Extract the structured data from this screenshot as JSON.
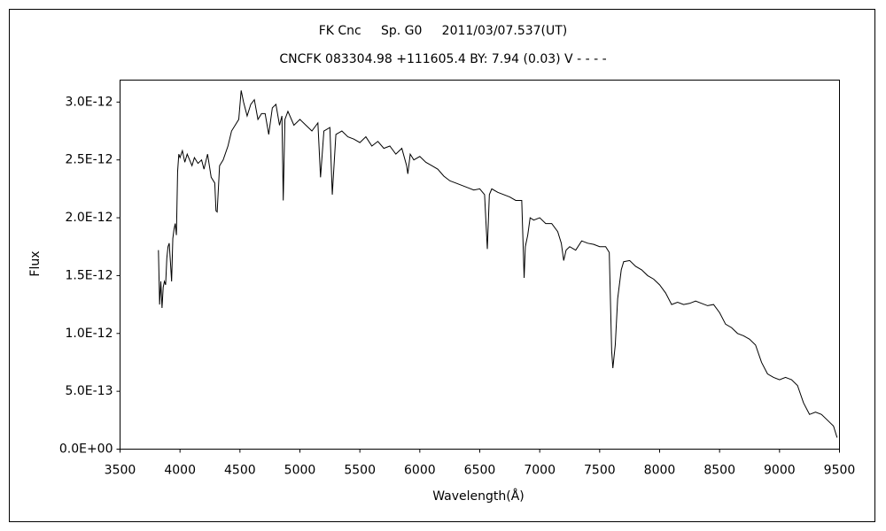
{
  "chart_data": {
    "type": "line",
    "title": "FK Cnc     Sp. G0     2011/03/07.537(UT)",
    "subtitle": "CNCFK 083304.98 +111605.4 BY: 7.94 (0.03) V - - - -",
    "x_label": "Wavelength(Å)",
    "y_label": "Flux",
    "color": "#000000",
    "xlim": [
      3500,
      9500
    ],
    "xticks": [
      3500,
      4000,
      4500,
      5000,
      5500,
      6000,
      6500,
      7000,
      7500,
      8000,
      8500,
      9000,
      9500
    ],
    "ylim": [
      0,
      3.19e-12
    ],
    "yticks": [
      {
        "value": 0,
        "label": "0.0E+00"
      },
      {
        "value": 5e-13,
        "label": "5.0E-13"
      },
      {
        "value": 1e-12,
        "label": "1.0E-12"
      },
      {
        "value": 1.5e-12,
        "label": "1.5E-12"
      },
      {
        "value": 2e-12,
        "label": "2.0E-12"
      },
      {
        "value": 2.5e-12,
        "label": "2.5E-12"
      },
      {
        "value": 3e-12,
        "label": "3.0E-12"
      }
    ],
    "grid": false,
    "x": [
      3820,
      3830,
      3840,
      3850,
      3860,
      3870,
      3880,
      3890,
      3900,
      3910,
      3920,
      3930,
      3940,
      3950,
      3960,
      3970,
      3980,
      3990,
      4000,
      4020,
      4040,
      4060,
      4080,
      4100,
      4120,
      4150,
      4180,
      4200,
      4230,
      4260,
      4290,
      4300,
      4310,
      4330,
      4360,
      4400,
      4430,
      4460,
      4490,
      4510,
      4530,
      4560,
      4590,
      4620,
      4650,
      4680,
      4710,
      4740,
      4770,
      4800,
      4830,
      4850,
      4861,
      4875,
      4900,
      4950,
      5000,
      5050,
      5100,
      5150,
      5172,
      5200,
      5250,
      5270,
      5300,
      5350,
      5400,
      5450,
      5500,
      5550,
      5600,
      5650,
      5700,
      5750,
      5800,
      5850,
      5890,
      5900,
      5920,
      5950,
      6000,
      6050,
      6100,
      6150,
      6200,
      6250,
      6300,
      6350,
      6400,
      6450,
      6500,
      6540,
      6563,
      6580,
      6600,
      6650,
      6700,
      6750,
      6800,
      6850,
      6870,
      6880,
      6900,
      6920,
      6950,
      7000,
      7050,
      7100,
      7150,
      7180,
      7200,
      7220,
      7250,
      7300,
      7350,
      7400,
      7450,
      7500,
      7550,
      7580,
      7600,
      7610,
      7630,
      7650,
      7680,
      7700,
      7750,
      7800,
      7850,
      7900,
      7950,
      8000,
      8050,
      8100,
      8150,
      8200,
      8250,
      8300,
      8350,
      8400,
      8450,
      8500,
      8550,
      8600,
      8650,
      8700,
      8750,
      8800,
      8850,
      8900,
      8950,
      9000,
      9050,
      9100,
      9150,
      9200,
      9250,
      9300,
      9350,
      9400,
      9450,
      9480
    ],
    "values": [
      1.72e-12,
      1.25e-12,
      1.45e-12,
      1.22e-12,
      1.4e-12,
      1.45e-12,
      1.42e-12,
      1.65e-12,
      1.75e-12,
      1.78e-12,
      1.62e-12,
      1.45e-12,
      1.82e-12,
      1.9e-12,
      1.95e-12,
      1.85e-12,
      2.4e-12,
      2.55e-12,
      2.52e-12,
      2.58e-12,
      2.48e-12,
      2.55e-12,
      2.5e-12,
      2.45e-12,
      2.52e-12,
      2.47e-12,
      2.5e-12,
      2.42e-12,
      2.55e-12,
      2.35e-12,
      2.3e-12,
      2.06e-12,
      2.05e-12,
      2.45e-12,
      2.5e-12,
      2.62e-12,
      2.75e-12,
      2.8e-12,
      2.85e-12,
      3.1e-12,
      3e-12,
      2.88e-12,
      2.98e-12,
      3.02e-12,
      2.85e-12,
      2.9e-12,
      2.9e-12,
      2.72e-12,
      2.95e-12,
      2.98e-12,
      2.8e-12,
      2.88e-12,
      2.15e-12,
      2.85e-12,
      2.92e-12,
      2.8e-12,
      2.85e-12,
      2.8e-12,
      2.75e-12,
      2.82e-12,
      2.35e-12,
      2.75e-12,
      2.78e-12,
      2.2e-12,
      2.72e-12,
      2.75e-12,
      2.7e-12,
      2.68e-12,
      2.65e-12,
      2.7e-12,
      2.62e-12,
      2.66e-12,
      2.6e-12,
      2.62e-12,
      2.55e-12,
      2.6e-12,
      2.45e-12,
      2.38e-12,
      2.55e-12,
      2.5e-12,
      2.53e-12,
      2.48e-12,
      2.45e-12,
      2.42e-12,
      2.36e-12,
      2.32e-12,
      2.3e-12,
      2.28e-12,
      2.26e-12,
      2.24e-12,
      2.25e-12,
      2.2e-12,
      1.73e-12,
      2.2e-12,
      2.25e-12,
      2.22e-12,
      2.2e-12,
      2.18e-12,
      2.15e-12,
      2.15e-12,
      1.48e-12,
      1.75e-12,
      1.85e-12,
      2e-12,
      1.98e-12,
      2e-12,
      1.95e-12,
      1.95e-12,
      1.88e-12,
      1.78e-12,
      1.63e-12,
      1.72e-12,
      1.75e-12,
      1.72e-12,
      1.8e-12,
      1.78e-12,
      1.77e-12,
      1.75e-12,
      1.75e-12,
      1.7e-12,
      8.5e-13,
      7e-13,
      9e-13,
      1.3e-12,
      1.55e-12,
      1.62e-12,
      1.63e-12,
      1.58e-12,
      1.55e-12,
      1.5e-12,
      1.47e-12,
      1.42e-12,
      1.35e-12,
      1.25e-12,
      1.27e-12,
      1.25e-12,
      1.26e-12,
      1.28e-12,
      1.26e-12,
      1.24e-12,
      1.25e-12,
      1.18e-12,
      1.08e-12,
      1.05e-12,
      1e-12,
      9.8e-13,
      9.5e-13,
      9e-13,
      7.5e-13,
      6.5e-13,
      6.2e-13,
      6e-13,
      6.2e-13,
      6e-13,
      5.5e-13,
      4e-13,
      3e-13,
      3.2e-13,
      3e-13,
      2.5e-13,
      2e-13,
      1e-13
    ]
  }
}
